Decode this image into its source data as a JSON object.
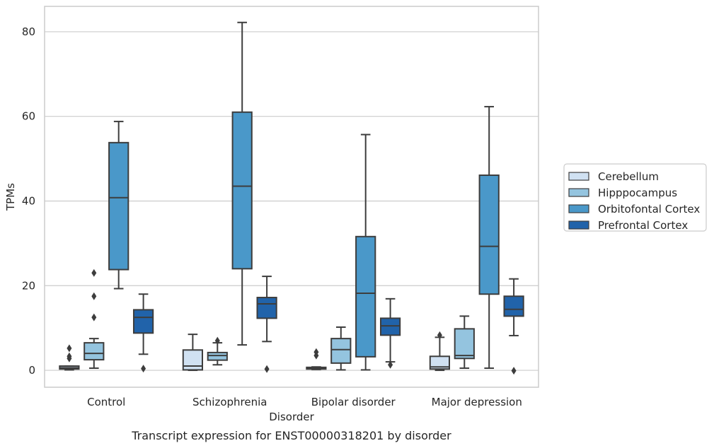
{
  "chart_data": {
    "type": "box",
    "title": "",
    "caption": "Transcript expression for ENST00000318201 by disorder",
    "xlabel": "Disorder",
    "ylabel": "TPMs",
    "ylim": [
      -4,
      86
    ],
    "yticks": [
      0,
      20,
      40,
      60,
      80
    ],
    "grid": "horizontal",
    "legend_position": "right",
    "categories": [
      "Control",
      "Schizophrenia",
      "Bipolar disorder",
      "Major depression"
    ],
    "series": [
      {
        "name": "Cerebellum",
        "color": "#d0e1f2",
        "boxes": [
          {
            "whisker_low": 0.1,
            "q1": 0.3,
            "median": 0.6,
            "q3": 1.0,
            "whisker_high": 1.0,
            "outliers": [
              2.8,
              3.3,
              5.2
            ]
          },
          {
            "whisker_low": 0.0,
            "q1": 0.1,
            "median": 1.0,
            "q3": 4.8,
            "whisker_high": 8.5,
            "outliers": []
          },
          {
            "whisker_low": 0.2,
            "q1": 0.3,
            "median": 0.5,
            "q3": 0.7,
            "whisker_high": 0.8,
            "outliers": [
              3.5,
              4.3
            ]
          },
          {
            "whisker_low": 0.0,
            "q1": 0.3,
            "median": 0.8,
            "q3": 3.3,
            "whisker_high": 7.8,
            "outliers": [
              8.3
            ]
          }
        ]
      },
      {
        "name": "Hipppocampus",
        "color": "#94c4df",
        "boxes": [
          {
            "whisker_low": 0.5,
            "q1": 2.5,
            "median": 4.0,
            "q3": 6.5,
            "whisker_high": 7.5,
            "outliers": [
              12.5,
              17.5,
              23.0
            ]
          },
          {
            "whisker_low": 1.3,
            "q1": 2.4,
            "median": 3.5,
            "q3": 4.2,
            "whisker_high": 6.5,
            "outliers": [
              7.0
            ]
          },
          {
            "whisker_low": 0.1,
            "q1": 1.7,
            "median": 4.9,
            "q3": 7.5,
            "whisker_high": 10.2,
            "outliers": []
          },
          {
            "whisker_low": 0.5,
            "q1": 2.8,
            "median": 3.5,
            "q3": 9.8,
            "whisker_high": 12.8,
            "outliers": []
          }
        ]
      },
      {
        "name": "Orbitofontal Cortex",
        "color": "#4a98c9",
        "boxes": [
          {
            "whisker_low": 19.3,
            "q1": 23.8,
            "median": 40.8,
            "q3": 53.8,
            "whisker_high": 58.8,
            "outliers": []
          },
          {
            "whisker_low": 6.0,
            "q1": 24.0,
            "median": 43.5,
            "q3": 61.0,
            "whisker_high": 82.2,
            "outliers": []
          },
          {
            "whisker_low": 0.1,
            "q1": 3.2,
            "median": 18.2,
            "q3": 31.6,
            "whisker_high": 55.7,
            "outliers": []
          },
          {
            "whisker_low": 0.5,
            "q1": 18.0,
            "median": 29.3,
            "q3": 46.1,
            "whisker_high": 62.3,
            "outliers": []
          }
        ]
      },
      {
        "name": "Prefrontal Cortex",
        "color": "#2163aa",
        "boxes": [
          {
            "whisker_low": 3.8,
            "q1": 8.8,
            "median": 12.5,
            "q3": 14.3,
            "whisker_high": 18.0,
            "outliers": [
              0.4
            ]
          },
          {
            "whisker_low": 6.8,
            "q1": 12.3,
            "median": 15.7,
            "q3": 17.2,
            "whisker_high": 22.2,
            "outliers": [
              0.3
            ]
          },
          {
            "whisker_low": 2.0,
            "q1": 8.3,
            "median": 10.5,
            "q3": 12.3,
            "whisker_high": 16.9,
            "outliers": [
              1.3
            ]
          },
          {
            "whisker_low": 8.2,
            "q1": 12.8,
            "median": 14.4,
            "q3": 17.5,
            "whisker_high": 21.6,
            "outliers": [
              -0.1
            ]
          }
        ]
      }
    ]
  }
}
